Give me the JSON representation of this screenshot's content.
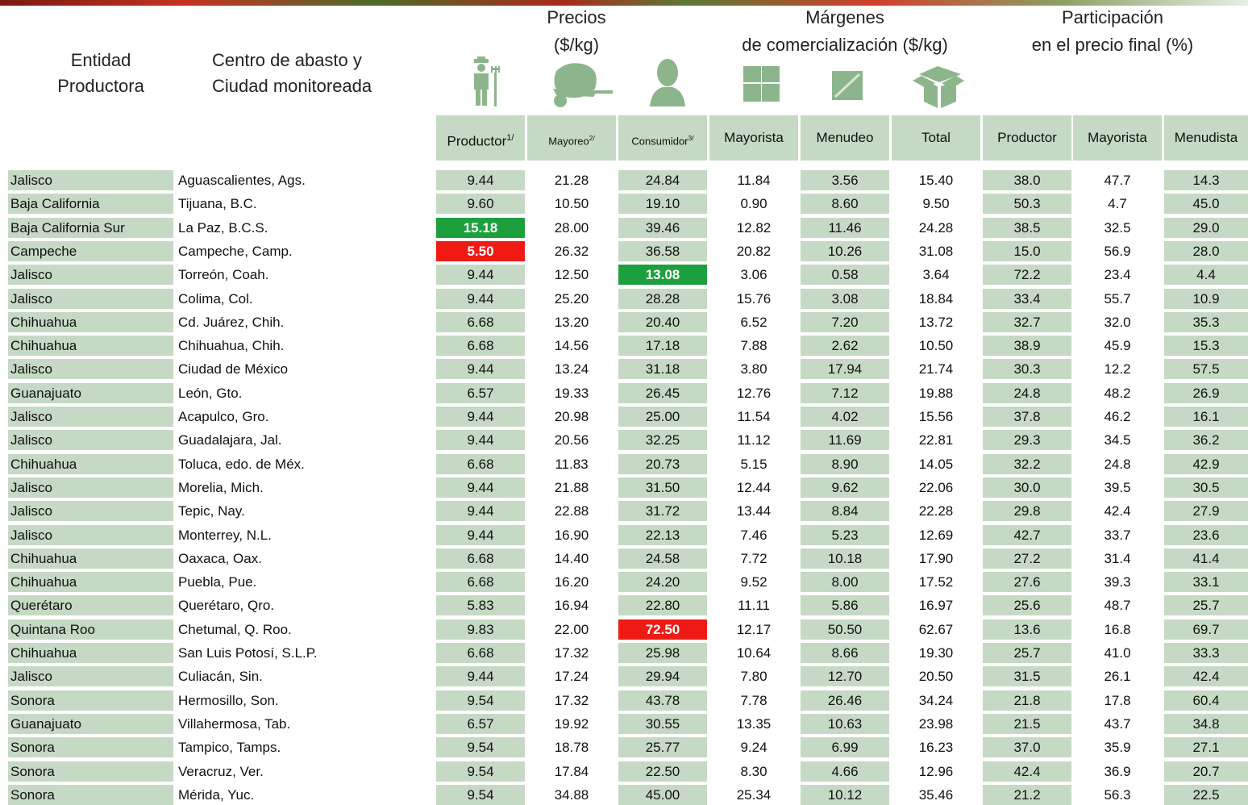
{
  "header": {
    "entity": [
      "Entidad",
      "Productora"
    ],
    "center": [
      "Centro de abasto y",
      "Ciudad monitoreada"
    ],
    "groups": [
      {
        "lines": [
          "Precios",
          "($/kg)"
        ]
      },
      {
        "lines": [
          "Márgenes",
          "de comercialización ($/kg)"
        ]
      },
      {
        "lines": [
          "Participación",
          "en el precio final (%)"
        ]
      }
    ]
  },
  "table": {
    "columns": [
      {
        "text": "Productor",
        "note": "1/"
      },
      {
        "text": "Mayoreo",
        "note": "2/"
      },
      {
        "text": "Consumidor",
        "note": "3/"
      },
      {
        "text": "Mayorista"
      },
      {
        "text": "Menudeo"
      },
      {
        "text": "Total"
      },
      {
        "text": "Productor"
      },
      {
        "text": "Mayorista"
      },
      {
        "text": "Menudista"
      }
    ],
    "rows": [
      [
        "Jalisco",
        "Aguascalientes, Ags.",
        "9.44",
        "21.28",
        "24.84",
        "11.84",
        "3.56",
        "15.40",
        "38.0",
        "47.7",
        "14.3"
      ],
      [
        "Baja California",
        "Tijuana, B.C.",
        "9.60",
        "10.50",
        "19.10",
        "0.90",
        "8.60",
        "9.50",
        "50.3",
        "4.7",
        "45.0"
      ],
      [
        "Baja California Sur",
        "La Paz, B.C.S.",
        "15.18",
        "28.00",
        "39.46",
        "12.82",
        "11.46",
        "24.28",
        "38.5",
        "32.5",
        "29.0"
      ],
      [
        "Campeche",
        "Campeche, Camp.",
        "5.50",
        "26.32",
        "36.58",
        "20.82",
        "10.26",
        "31.08",
        "15.0",
        "56.9",
        "28.0"
      ],
      [
        "Jalisco",
        "Torreón, Coah.",
        "9.44",
        "12.50",
        "13.08",
        "3.06",
        "0.58",
        "3.64",
        "72.2",
        "23.4",
        "4.4"
      ],
      [
        "Jalisco",
        "Colima, Col.",
        "9.44",
        "25.20",
        "28.28",
        "15.76",
        "3.08",
        "18.84",
        "33.4",
        "55.7",
        "10.9"
      ],
      [
        "Chihuahua",
        "Cd. Juárez, Chih.",
        "6.68",
        "13.20",
        "20.40",
        "6.52",
        "7.20",
        "13.72",
        "32.7",
        "32.0",
        "35.3"
      ],
      [
        "Chihuahua",
        "Chihuahua, Chih.",
        "6.68",
        "14.56",
        "17.18",
        "7.88",
        "2.62",
        "10.50",
        "38.9",
        "45.9",
        "15.3"
      ],
      [
        "Jalisco",
        "Ciudad de México",
        "9.44",
        "13.24",
        "31.18",
        "3.80",
        "17.94",
        "21.74",
        "30.3",
        "12.2",
        "57.5"
      ],
      [
        "Guanajuato",
        "León, Gto.",
        "6.57",
        "19.33",
        "26.45",
        "12.76",
        "7.12",
        "19.88",
        "24.8",
        "48.2",
        "26.9"
      ],
      [
        "Jalisco",
        "Acapulco, Gro.",
        "9.44",
        "20.98",
        "25.00",
        "11.54",
        "4.02",
        "15.56",
        "37.8",
        "46.2",
        "16.1"
      ],
      [
        "Jalisco",
        "Guadalajara, Jal.",
        "9.44",
        "20.56",
        "32.25",
        "11.12",
        "11.69",
        "22.81",
        "29.3",
        "34.5",
        "36.2"
      ],
      [
        "Chihuahua",
        "Toluca, edo. de Méx.",
        "6.68",
        "11.83",
        "20.73",
        "5.15",
        "8.90",
        "14.05",
        "32.2",
        "24.8",
        "42.9"
      ],
      [
        "Jalisco",
        "Morelia, Mich.",
        "9.44",
        "21.88",
        "31.50",
        "12.44",
        "9.62",
        "22.06",
        "30.0",
        "39.5",
        "30.5"
      ],
      [
        "Jalisco",
        "Tepic, Nay.",
        "9.44",
        "22.88",
        "31.72",
        "13.44",
        "8.84",
        "22.28",
        "29.8",
        "42.4",
        "27.9"
      ],
      [
        "Jalisco",
        "Monterrey, N.L.",
        "9.44",
        "16.90",
        "22.13",
        "7.46",
        "5.23",
        "12.69",
        "42.7",
        "33.7",
        "23.6"
      ],
      [
        "Chihuahua",
        "Oaxaca, Oax.",
        "6.68",
        "14.40",
        "24.58",
        "7.72",
        "10.18",
        "17.90",
        "27.2",
        "31.4",
        "41.4"
      ],
      [
        "Chihuahua",
        "Puebla, Pue.",
        "6.68",
        "16.20",
        "24.20",
        "9.52",
        "8.00",
        "17.52",
        "27.6",
        "39.3",
        "33.1"
      ],
      [
        "Querétaro",
        "Querétaro, Qro.",
        "5.83",
        "16.94",
        "22.80",
        "11.11",
        "5.86",
        "16.97",
        "25.6",
        "48.7",
        "25.7"
      ],
      [
        "Quintana Roo",
        "Chetumal, Q. Roo.",
        "9.83",
        "22.00",
        "72.50",
        "12.17",
        "50.50",
        "62.67",
        "13.6",
        "16.8",
        "69.7"
      ],
      [
        "Chihuahua",
        "San Luis Potosí, S.L.P.",
        "6.68",
        "17.32",
        "25.98",
        "10.64",
        "8.66",
        "19.30",
        "25.7",
        "41.0",
        "33.3"
      ],
      [
        "Jalisco",
        "Culiacán, Sin.",
        "9.44",
        "17.24",
        "29.94",
        "7.80",
        "12.70",
        "20.50",
        "31.5",
        "26.1",
        "42.4"
      ],
      [
        "Sonora",
        "Hermosillo, Son.",
        "9.54",
        "17.32",
        "43.78",
        "7.78",
        "26.46",
        "34.24",
        "21.8",
        "17.8",
        "60.4"
      ],
      [
        "Guanajuato",
        "Villahermosa, Tab.",
        "6.57",
        "19.92",
        "30.55",
        "13.35",
        "10.63",
        "23.98",
        "21.5",
        "43.7",
        "34.8"
      ],
      [
        "Sonora",
        "Tampico, Tamps.",
        "9.54",
        "18.78",
        "25.77",
        "9.24",
        "6.99",
        "16.23",
        "37.0",
        "35.9",
        "27.1"
      ],
      [
        "Sonora",
        "Veracruz, Ver.",
        "9.54",
        "17.84",
        "22.50",
        "8.30",
        "4.66",
        "12.96",
        "42.4",
        "36.9",
        "20.7"
      ],
      [
        "Sonora",
        "Mérida, Yuc.",
        "9.54",
        "34.88",
        "45.00",
        "25.34",
        "10.12",
        "35.46",
        "21.2",
        "56.3",
        "22.5"
      ]
    ],
    "highlight": [
      {
        "row": 2,
        "column": 2,
        "color": "#1e9f3d"
      },
      {
        "row": 3,
        "column": 2,
        "color": "#f01a14"
      },
      {
        "row": 4,
        "column": 4,
        "color": "#1e9f3d"
      },
      {
        "row": 19,
        "column": 4,
        "color": "#f01a14"
      }
    ]
  }
}
